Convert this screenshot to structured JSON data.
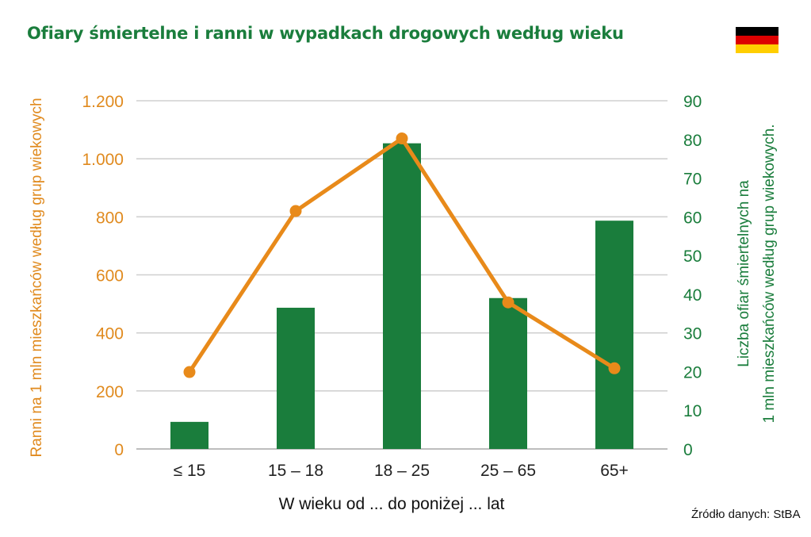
{
  "title": "Ofiary śmiertelne i ranni w wypadkach drogowych według wieku",
  "flag": {
    "name": "germany-flag",
    "colors": [
      "#000000",
      "#dd0000",
      "#ffce00"
    ]
  },
  "source": "Źródło danych: StBA",
  "colors": {
    "bar": "#1a7d3c",
    "line": "#e88a1a",
    "left_axis": "#e08a1e",
    "right_axis": "#1a7d3c",
    "grid": "#d0d0d0"
  },
  "chart_data": {
    "type": "bar",
    "categories": [
      "≤ 15",
      "15 – 18",
      "18 – 25",
      "25 – 65",
      "65+"
    ],
    "xlabel": "W wieku od ... do poniżej ... lat",
    "ylabel_left": "Ranni na 1 mln mieszkańców  według grup wiekowych",
    "ylabel_right_lines": [
      "Liczba ofiar śmiertelnych na",
      "1 mln mieszkańców według grup wiekowych."
    ],
    "left_axis": {
      "min": 0,
      "max": 1200,
      "ticks": [
        0,
        200,
        400,
        600,
        800,
        1000,
        1200
      ],
      "tick_labels": [
        "0",
        "200",
        "400",
        "600",
        "800",
        "1.000",
        "1.200"
      ]
    },
    "right_axis": {
      "min": 0,
      "max": 90,
      "ticks": [
        0,
        10,
        20,
        30,
        40,
        50,
        60,
        70,
        80,
        90
      ],
      "tick_labels": [
        "0",
        "10",
        "20",
        "30",
        "40",
        "50",
        "60",
        "70",
        "80",
        "90"
      ]
    },
    "series": [
      {
        "type": "bar",
        "axis": "right",
        "values": [
          7,
          36.5,
          79,
          39,
          59
        ]
      },
      {
        "type": "line",
        "axis": "left",
        "values": [
          265,
          820,
          1070,
          505,
          278
        ]
      }
    ],
    "grid": true
  }
}
